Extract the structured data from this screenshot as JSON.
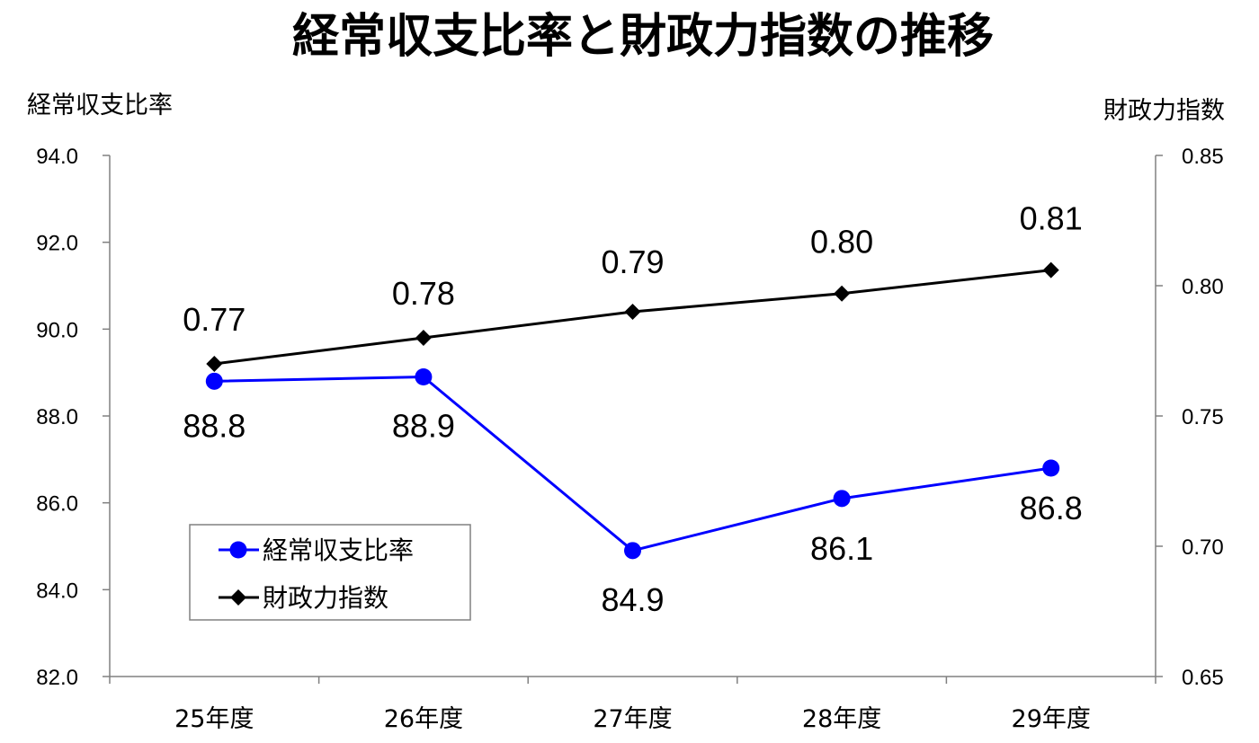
{
  "chart_data": {
    "type": "line",
    "title": "経常収支比率と財政力指数の推移",
    "categories": [
      "25年度",
      "26年度",
      "27年度",
      "28年度",
      "29年度"
    ],
    "y_left": {
      "label": "経常収支比率",
      "range": [
        82.0,
        94.0
      ],
      "ticks": [
        "82.0",
        "84.0",
        "86.0",
        "88.0",
        "90.0",
        "92.0",
        "94.0"
      ]
    },
    "y_right": {
      "label": "財政力指数",
      "range": [
        0.65,
        0.85
      ],
      "ticks": [
        "0.65",
        "0.70",
        "0.75",
        "0.80",
        "0.85"
      ]
    },
    "series": [
      {
        "name": "経常収支比率",
        "axis": "left",
        "color": "#0000ff",
        "marker": "circle",
        "values": [
          88.8,
          88.9,
          84.9,
          86.1,
          86.8
        ],
        "labels": [
          "88.8",
          "88.9",
          "84.9",
          "86.1",
          "86.8"
        ]
      },
      {
        "name": "財政力指数",
        "axis": "right",
        "color": "#000000",
        "marker": "diamond",
        "values": [
          0.77,
          0.78,
          0.79,
          0.797,
          0.806
        ],
        "labels": [
          "0.77",
          "0.78",
          "0.79",
          "0.80",
          "0.81"
        ]
      }
    ],
    "legend": {
      "position": "bottom-left",
      "entries": [
        "経常収支比率",
        "財政力指数"
      ]
    },
    "grid": false
  }
}
